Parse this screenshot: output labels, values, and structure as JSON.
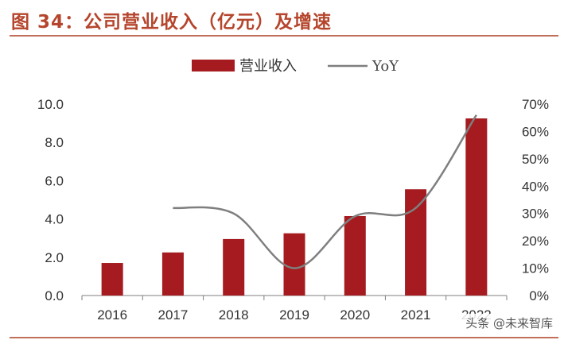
{
  "figure": {
    "title": "图 34：公司营业收入（亿元）及增速",
    "watermark": "头条 @未来智库"
  },
  "colors": {
    "title": "#b5452c",
    "bar": "#a51b1f",
    "line": "#7f7f7f",
    "rule": "#c0705a"
  },
  "chart_data": {
    "type": "bar",
    "categories": [
      "2016",
      "2017",
      "2018",
      "2019",
      "2020",
      "2021",
      "2022"
    ],
    "series": [
      {
        "name": "营业收入",
        "type": "bar",
        "axis": "left",
        "values": [
          1.7,
          2.25,
          2.95,
          3.25,
          4.15,
          5.55,
          9.25
        ]
      },
      {
        "name": "YoY",
        "type": "line",
        "axis": "right",
        "smooth": true,
        "values": [
          null,
          32,
          30,
          10,
          29,
          32,
          66
        ]
      }
    ],
    "y_left": {
      "min": 0,
      "max": 10,
      "ticks": [
        "0.0",
        "2.0",
        "4.0",
        "6.0",
        "8.0",
        "10.0"
      ]
    },
    "y_right": {
      "min": 0,
      "max": 70,
      "ticks": [
        "0%",
        "10%",
        "20%",
        "30%",
        "40%",
        "50%",
        "60%",
        "70%"
      ]
    },
    "grid": false,
    "legend": "top-center"
  }
}
